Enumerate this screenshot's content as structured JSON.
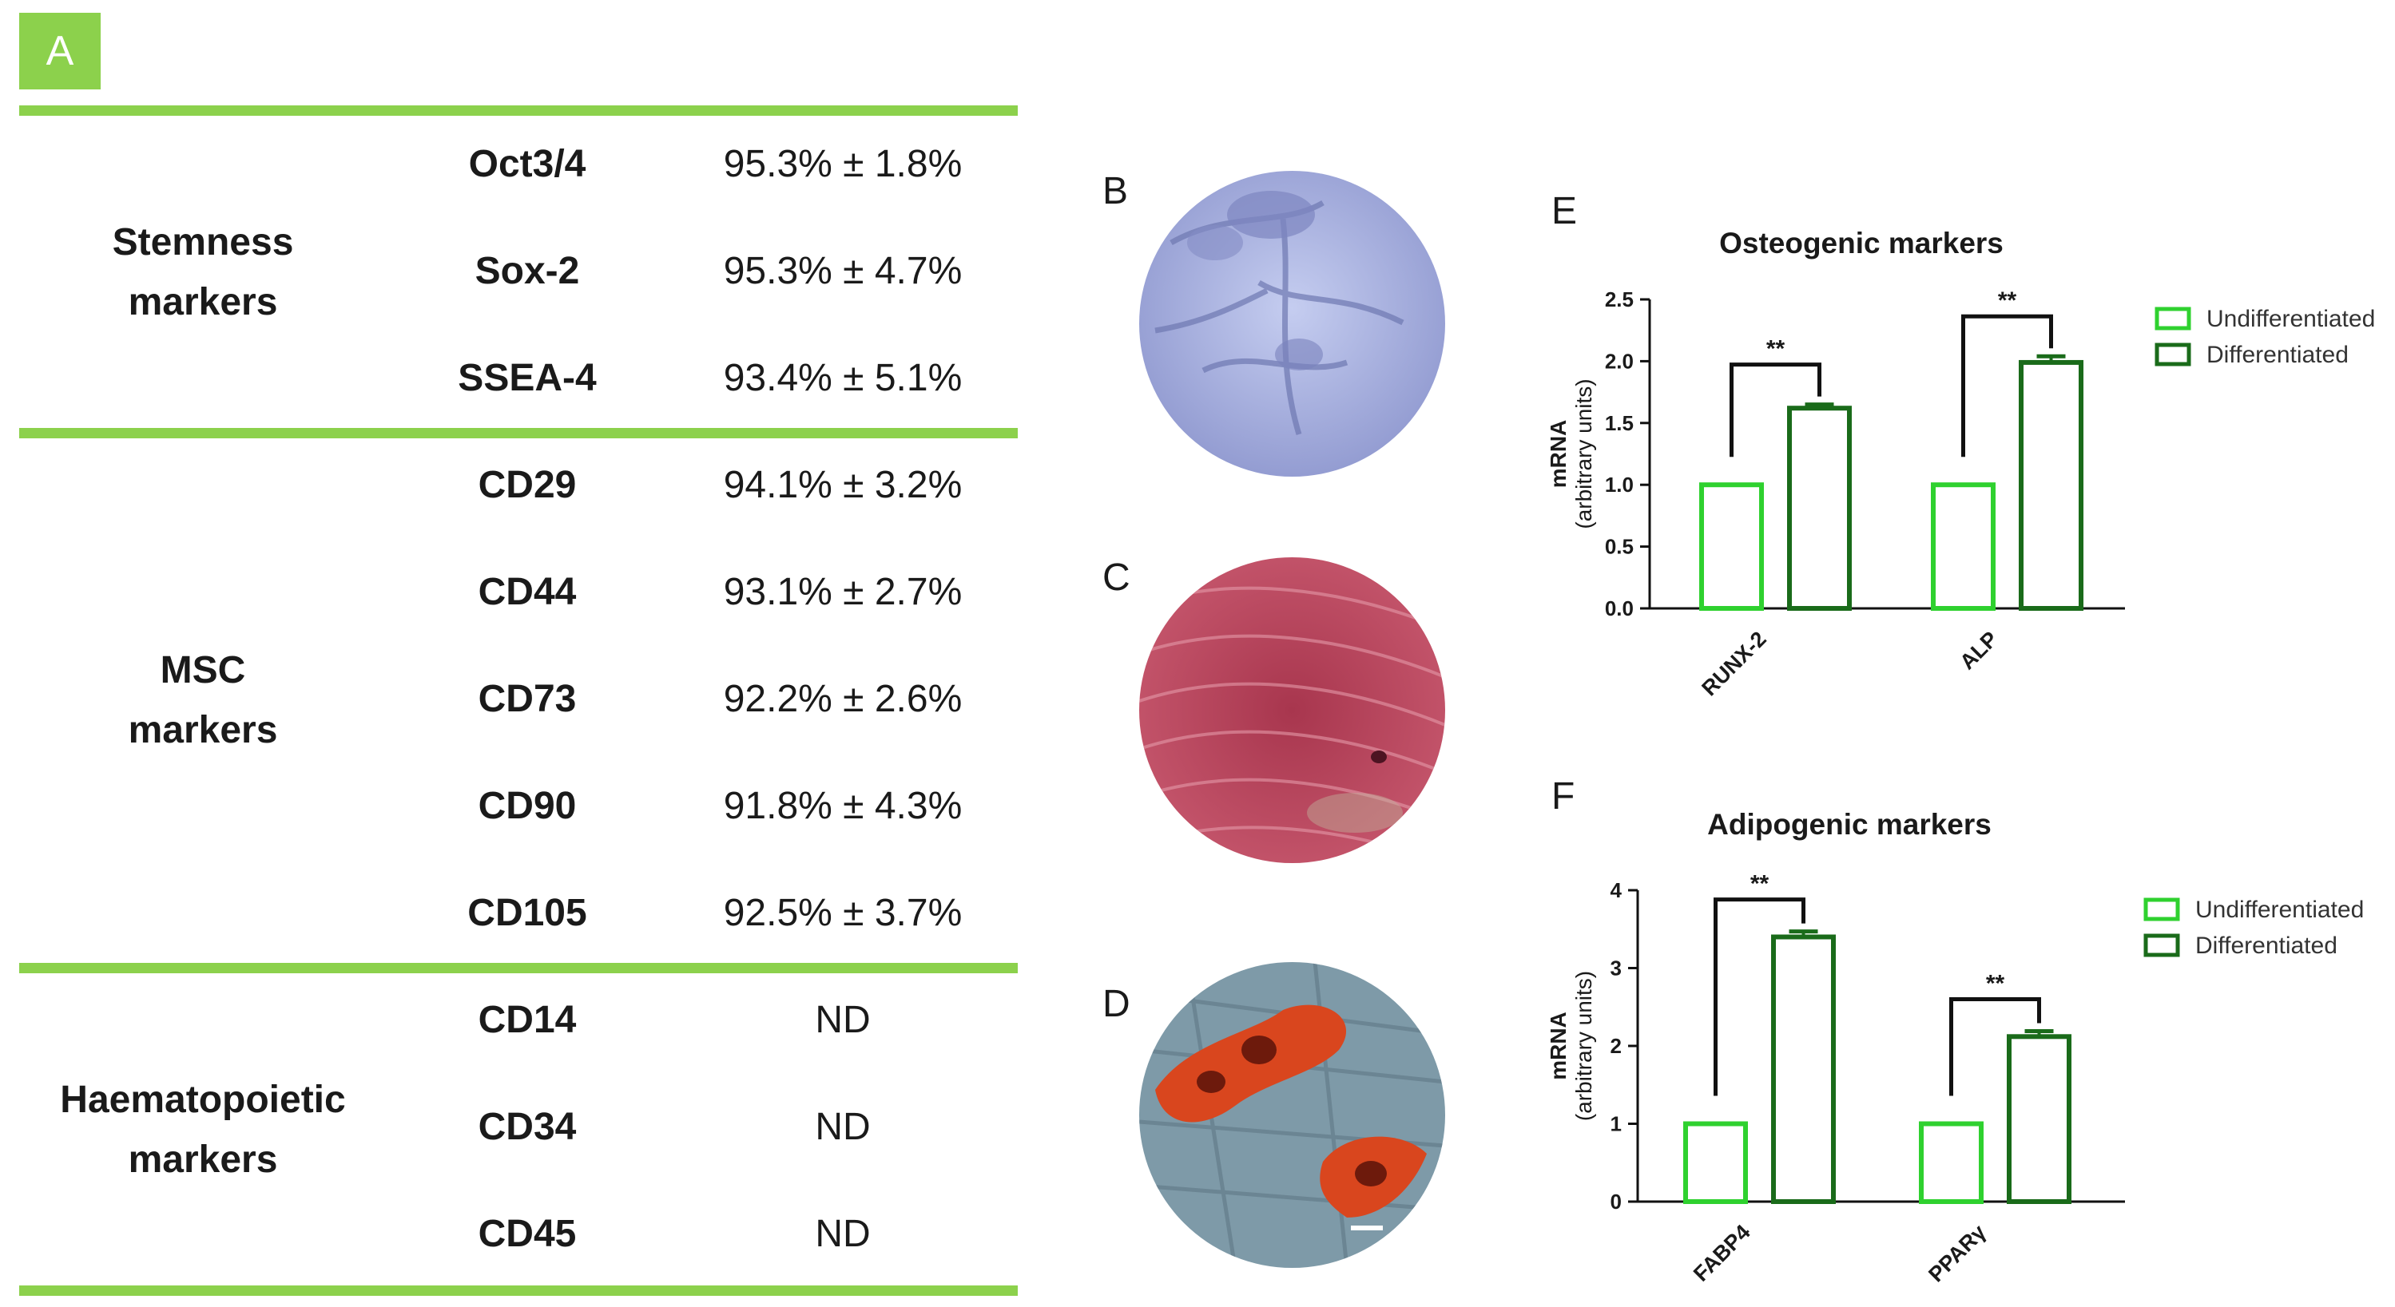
{
  "colors": {
    "green_line": "#8cd14c",
    "undiff": "#2fd12f",
    "diff": "#1a6b1a",
    "bracket": "#111111"
  },
  "panel_labels": {
    "a": "A",
    "b": "B",
    "c": "C",
    "d": "D",
    "e": "E",
    "f": "F"
  },
  "table": {
    "groups": [
      {
        "label_line1": "Stemness",
        "label_line2": "markers",
        "rows": [
          {
            "marker": "Oct3/4",
            "value": "95.3% ± 1.8%"
          },
          {
            "marker": "Sox-2",
            "value": "95.3% ± 4.7%"
          },
          {
            "marker": "SSEA-4",
            "value": "93.4% ± 5.1%"
          }
        ]
      },
      {
        "label_line1": "MSC",
        "label_line2": "markers",
        "rows": [
          {
            "marker": "CD29",
            "value": "94.1% ± 3.2%"
          },
          {
            "marker": "CD44",
            "value": "93.1% ± 2.7%"
          },
          {
            "marker": "CD73",
            "value": "92.2% ± 2.6%"
          },
          {
            "marker": "CD90",
            "value": "91.8% ± 4.3%"
          },
          {
            "marker": "CD105",
            "value": "92.5% ± 3.7%"
          }
        ]
      },
      {
        "label_line1": "Haematopoietic",
        "label_line2": "markers",
        "rows": [
          {
            "marker": "CD14",
            "value": "ND"
          },
          {
            "marker": "CD34",
            "value": "ND"
          },
          {
            "marker": "CD45",
            "value": "ND"
          }
        ]
      }
    ]
  },
  "chart_data": [
    {
      "type": "bar",
      "panel": "E",
      "title": "Osteogenic markers",
      "ylabel_line1": "mRNA",
      "ylabel_line2": "(arbitrary units)",
      "categories": [
        "RUNX-2",
        "ALP"
      ],
      "series": [
        {
          "name": "Undifferentiated",
          "values": [
            1.0,
            1.0
          ],
          "errors": [
            0,
            0
          ]
        },
        {
          "name": "Differentiated",
          "values": [
            1.62,
            1.99
          ],
          "errors": [
            0.03,
            0.05
          ]
        }
      ],
      "significance": [
        "**",
        "**"
      ],
      "ylim": [
        0,
        2.5
      ],
      "yticks": [
        0.0,
        0.5,
        1.0,
        1.5,
        2.0,
        2.5
      ],
      "ytick_labels": [
        "0.0",
        "0.5",
        "1.0",
        "1.5",
        "2.0",
        "2.5"
      ],
      "legend_position": "right"
    },
    {
      "type": "bar",
      "panel": "F",
      "title": "Adipogenic markers",
      "ylabel_line1": "mRNA",
      "ylabel_line2": "(arbitrary units)",
      "categories": [
        "FABP4",
        "PPARγ"
      ],
      "series": [
        {
          "name": "Undifferentiated",
          "values": [
            1.0,
            1.0
          ],
          "errors": [
            0,
            0
          ]
        },
        {
          "name": "Differentiated",
          "values": [
            3.4,
            2.12
          ],
          "errors": [
            0.07,
            0.07
          ]
        }
      ],
      "significance": [
        "**",
        "**"
      ],
      "ylim": [
        0,
        4
      ],
      "yticks": [
        0,
        1,
        2,
        3,
        4
      ],
      "ytick_labels": [
        "0",
        "1",
        "2",
        "3",
        "4"
      ],
      "legend_position": "right"
    }
  ]
}
